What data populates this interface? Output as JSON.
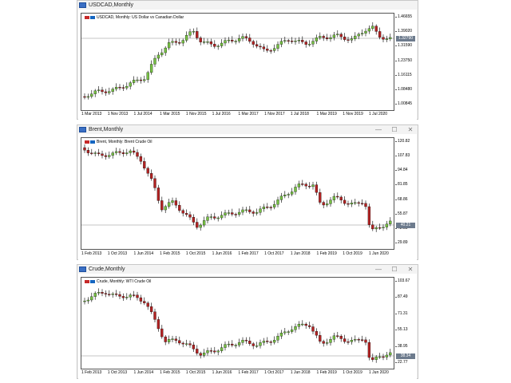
{
  "windows": [
    {
      "title": "USDCAD,Monthly",
      "symbol_label": "USDCAD, Monthly:  US Dollar vs Canadian Dollar",
      "has_controls": false,
      "current_price": "1.32790",
      "y_labels": [
        "1.46655",
        "1.39020",
        "1.31590",
        "1.23750",
        "1.16115",
        "1.08480",
        "1.00845"
      ],
      "x_labels": [
        "1 Mar 2013",
        "1 Nov 2013",
        "1 Jul 2014",
        "1 Mar 2015",
        "1 Nov 2015",
        "1 Jul 2016",
        "1 Mar 2017",
        "1 Nov 2017",
        "1 Jul 2018",
        "1 Mar 2019",
        "1 Nov 2019",
        "1 Jul 2020"
      ]
    },
    {
      "title": "Brent,Monthly",
      "symbol_label": "Brent, Monthly:  Brent Crude Oil",
      "has_controls": true,
      "current_price": "40.21",
      "y_labels": [
        "120.82",
        "107.83",
        "94.84",
        "81.85",
        "68.86",
        "55.87",
        "42.88",
        "29.89"
      ],
      "x_labels": [
        "1 Feb 2013",
        "1 Oct 2013",
        "1 Jun 2014",
        "1 Feb 2015",
        "1 Oct 2015",
        "1 Jun 2016",
        "1 Feb 2017",
        "1 Oct 2017",
        "1 Jun 2018",
        "1 Feb 2019",
        "1 Oct 2019",
        "1 Jun 2020"
      ]
    },
    {
      "title": "Crude,Monthly",
      "symbol_label": "Crude, Monthly:  WTI Crude Oil",
      "has_controls": true,
      "current_price": "38.34",
      "y_labels": [
        "103.67",
        "87.49",
        "71.31",
        "55.13",
        "38.95",
        "22.77"
      ],
      "x_labels": [
        "1 Feb 2013",
        "1 Oct 2013",
        "1 Jun 2014",
        "1 Feb 2015",
        "1 Oct 2015",
        "1 Jun 2016",
        "1 Feb 2017",
        "1 Oct 2017",
        "1 Jun 2018",
        "1 Feb 2019",
        "1 Oct 2019",
        "1 Jun 2020"
      ]
    }
  ],
  "controls": {
    "minimize": "—",
    "maximize": "☐",
    "close": "✕"
  },
  "colors": {
    "bull": "#76c043",
    "bear": "#b22222",
    "wick": "#000000",
    "price_line": "#8a8a8a"
  },
  "icons": {
    "window": "chart-window-icon",
    "symbol": "flag-icon"
  }
}
